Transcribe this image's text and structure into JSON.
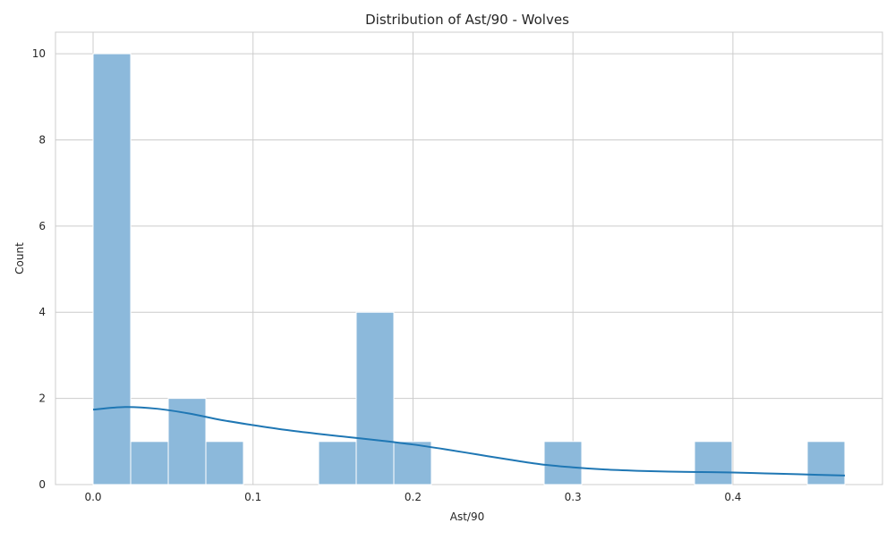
{
  "chart_data": {
    "type": "bar",
    "title": "Distribution of Ast/90 - Wolves",
    "xlabel": "Ast/90",
    "ylabel": "Count",
    "xlim": [
      -0.0235,
      0.4935
    ],
    "ylim": [
      0,
      10.5
    ],
    "xticks": [
      0.0,
      0.1,
      0.2,
      0.3,
      0.4
    ],
    "xtick_labels": [
      "0.0",
      "0.1",
      "0.2",
      "0.3",
      "0.4"
    ],
    "yticks": [
      0,
      2,
      4,
      6,
      8,
      10
    ],
    "ytick_labels": [
      "0",
      "2",
      "4",
      "6",
      "8",
      "10"
    ],
    "grid": true,
    "bin_width": 0.0235,
    "bins": [
      {
        "x0": 0.0,
        "x1": 0.0235,
        "count": 10
      },
      {
        "x0": 0.0235,
        "x1": 0.047,
        "count": 1
      },
      {
        "x0": 0.047,
        "x1": 0.0705,
        "count": 2
      },
      {
        "x0": 0.0705,
        "x1": 0.094,
        "count": 1
      },
      {
        "x0": 0.094,
        "x1": 0.1175,
        "count": 0
      },
      {
        "x0": 0.1175,
        "x1": 0.141,
        "count": 0
      },
      {
        "x0": 0.141,
        "x1": 0.1645,
        "count": 1
      },
      {
        "x0": 0.1645,
        "x1": 0.188,
        "count": 4
      },
      {
        "x0": 0.188,
        "x1": 0.2115,
        "count": 1
      },
      {
        "x0": 0.2115,
        "x1": 0.235,
        "count": 0
      },
      {
        "x0": 0.235,
        "x1": 0.2585,
        "count": 0
      },
      {
        "x0": 0.2585,
        "x1": 0.282,
        "count": 0
      },
      {
        "x0": 0.282,
        "x1": 0.3055,
        "count": 1
      },
      {
        "x0": 0.3055,
        "x1": 0.329,
        "count": 0
      },
      {
        "x0": 0.329,
        "x1": 0.3525,
        "count": 0
      },
      {
        "x0": 0.3525,
        "x1": 0.376,
        "count": 0
      },
      {
        "x0": 0.376,
        "x1": 0.3995,
        "count": 1
      },
      {
        "x0": 0.3995,
        "x1": 0.423,
        "count": 0
      },
      {
        "x0": 0.423,
        "x1": 0.4465,
        "count": 0
      },
      {
        "x0": 0.4465,
        "x1": 0.47,
        "count": 1
      }
    ],
    "kde": {
      "x": [
        0.0,
        0.02,
        0.04,
        0.06,
        0.08,
        0.1,
        0.12,
        0.14,
        0.16,
        0.18,
        0.2,
        0.22,
        0.24,
        0.26,
        0.28,
        0.3,
        0.32,
        0.34,
        0.36,
        0.38,
        0.4,
        0.42,
        0.44,
        0.47
      ],
      "y": [
        1.74,
        1.8,
        1.76,
        1.65,
        1.5,
        1.38,
        1.27,
        1.18,
        1.1,
        1.02,
        0.93,
        0.82,
        0.7,
        0.58,
        0.47,
        0.4,
        0.35,
        0.32,
        0.3,
        0.29,
        0.28,
        0.26,
        0.24,
        0.21
      ]
    },
    "colors": {
      "bar_fill": "#8cb9db",
      "bar_edge": "#ffffff",
      "kde_line": "#1f77b4",
      "grid": "#cccccc",
      "background": "#ffffff"
    }
  }
}
